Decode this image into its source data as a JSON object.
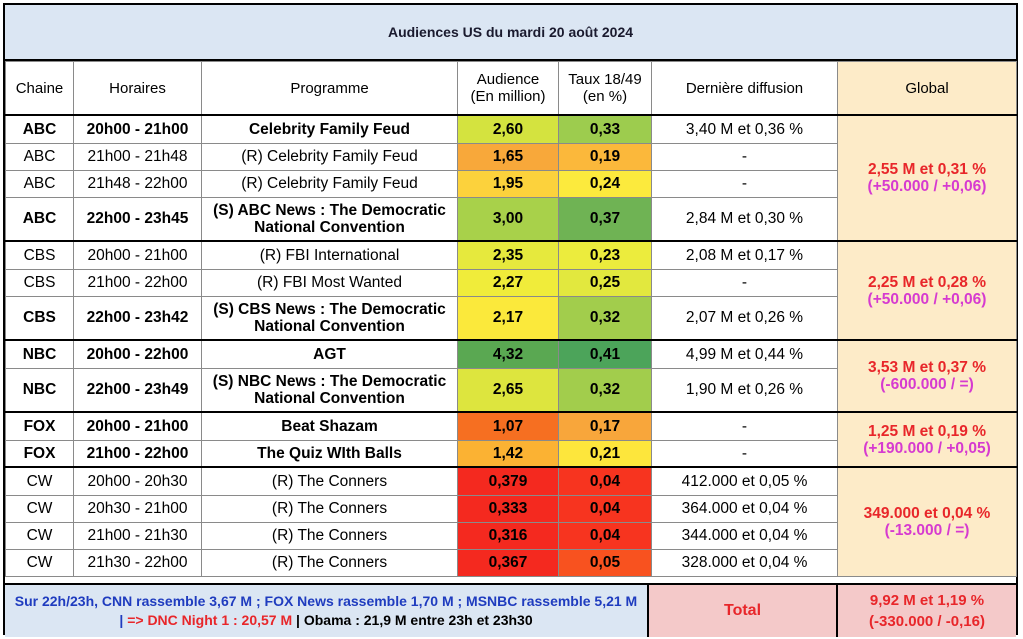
{
  "title": "Audiences US du mardi 20 août 2024",
  "headers": {
    "chaine": "Chaine",
    "horaires": "Horaires",
    "programme": "Programme",
    "audience_l1": "Audience",
    "audience_l2": "(En million)",
    "taux_l1": "Taux 18/49",
    "taux_l2": "(en %)",
    "derniere": "Dernière diffusion",
    "global": "Global"
  },
  "rows": [
    {
      "chaine": "ABC",
      "horaires": "20h00 - 21h00",
      "programme": "Celebrity Family Feud",
      "audience": "2,60",
      "taux": "0,33",
      "derniere": "3,40 M et 0,36 %",
      "bold": true
    },
    {
      "chaine": "ABC",
      "horaires": "21h00 - 21h48",
      "programme": "(R) Celebrity Family Feud",
      "audience": "1,65",
      "taux": "0,19",
      "derniere": "-",
      "bold": false
    },
    {
      "chaine": "ABC",
      "horaires": "21h48 - 22h00",
      "programme": "(R) Celebrity Family Feud",
      "audience": "1,95",
      "taux": "0,24",
      "derniere": "-",
      "bold": false
    },
    {
      "chaine": "ABC",
      "horaires": "22h00 - 23h45",
      "programme_l1": "(S) ABC News : The Democratic",
      "programme_l2": "National Convention",
      "audience": "3,00",
      "taux": "0,37",
      "derniere": "2,84 M et 0,30 %",
      "bold": true
    },
    {
      "chaine": "CBS",
      "horaires": "20h00 - 21h00",
      "programme": "(R) FBI International",
      "audience": "2,35",
      "taux": "0,23",
      "derniere": "2,08 M et 0,17 %",
      "bold": false
    },
    {
      "chaine": "CBS",
      "horaires": "21h00 - 22h00",
      "programme": "(R) FBI Most Wanted",
      "audience": "2,27",
      "taux": "0,25",
      "derniere": "-",
      "bold": false
    },
    {
      "chaine": "CBS",
      "horaires": "22h00 - 23h42",
      "programme_l1": "(S) CBS News : The Democratic",
      "programme_l2": "National Convention",
      "audience": "2,17",
      "taux": "0,32",
      "derniere": "2,07 M et 0,26 %",
      "bold": true
    },
    {
      "chaine": "NBC",
      "horaires": "20h00 - 22h00",
      "programme": "AGT",
      "audience": "4,32",
      "taux": "0,41",
      "derniere": "4,99 M et 0,44 %",
      "bold": true
    },
    {
      "chaine": "NBC",
      "horaires": "22h00 - 23h49",
      "programme_l1": "(S) NBC News : The Democratic",
      "programme_l2": "National Convention",
      "audience": "2,65",
      "taux": "0,32",
      "derniere": "1,90 M et 0,26 %",
      "bold": true
    },
    {
      "chaine": "FOX",
      "horaires": "20h00 - 21h00",
      "programme": "Beat Shazam",
      "audience": "1,07",
      "taux": "0,17",
      "derniere": "-",
      "bold": true
    },
    {
      "chaine": "FOX",
      "horaires": "21h00 - 22h00",
      "programme": "The Quiz WIth Balls",
      "audience": "1,42",
      "taux": "0,21",
      "derniere": "-",
      "bold": true
    },
    {
      "chaine": "CW",
      "horaires": "20h00 - 20h30",
      "programme": "(R) The Conners",
      "audience": "0,379",
      "taux": "0,04",
      "derniere": "412.000 et 0,05 %",
      "bold": false
    },
    {
      "chaine": "CW",
      "horaires": "20h30 - 21h00",
      "programme": "(R) The Conners",
      "audience": "0,333",
      "taux": "0,04",
      "derniere": "364.000 et 0,04 %",
      "bold": false
    },
    {
      "chaine": "CW",
      "horaires": "21h00 - 21h30",
      "programme": "(R) The Conners",
      "audience": "0,316",
      "taux": "0,04",
      "derniere": "344.000 et 0,04 %",
      "bold": false
    },
    {
      "chaine": "CW",
      "horaires": "21h30 - 22h00",
      "programme": "(R) The Conners",
      "audience": "0,367",
      "taux": "0,05",
      "derniere": "328.000 et 0,04 %",
      "bold": false
    }
  ],
  "globals": {
    "abc": {
      "line1": "2,55 M et 0,31 %",
      "line2": "(+50.000 / +0,06)"
    },
    "cbs": {
      "line1": "2,25 M et 0,28 %",
      "line2": "(+50.000 / +0,06)"
    },
    "nbc": {
      "line1": "3,53 M et 0,37 %",
      "line2": "(-600.000 / =)"
    },
    "fox": {
      "line1": "1,25 M et 0,19 %",
      "line2": "(+190.000 / +0,05)"
    },
    "cw": {
      "line1": "349.000 et 0,04 %",
      "line2": "(-13.000 / =)"
    }
  },
  "footer": {
    "note_blue": "Sur 22h/23h, CNN rassemble 3,67 M ; FOX News rassemble 1,70 M ; MSNBC rassemble 5,21 M |",
    "note_red": " => DNC Night 1 : 20,57 M ",
    "note_black": "| Obama : 21,9 M entre 23h et 23h30",
    "total_label": "Total",
    "total_line1": "9,92 M et 1,19 %",
    "total_line2": "(-330.000 / -0,16)"
  },
  "colors": {
    "title_bg": "#dbe6f3",
    "global_bg": "#fdebc8",
    "total_bg": "#f4c9c9",
    "global_red": "#e8262a",
    "global_magenta": "#d63ad0",
    "footer_blue": "#1f3cbf",
    "audience_cells": [
      "#d4e33f",
      "#f8a83a",
      "#fcd23c",
      "#a8d14a",
      "#e6e93d",
      "#f0ec3a",
      "#fbe93b",
      "#5aa852",
      "#dde53e",
      "#f66f21",
      "#fbb233",
      "#f4291f",
      "#f4291f",
      "#f4291f",
      "#f4291f"
    ],
    "taux_cells": [
      "#9dcc4e",
      "#fbb83b",
      "#fcea3d",
      "#6fb354",
      "#ecec3d",
      "#e2e83e",
      "#a2cd4c",
      "#4ca45a",
      "#a2cd4c",
      "#f8a63b",
      "#fde63c",
      "#f7341f",
      "#f7341f",
      "#f7341f",
      "#f8521f"
    ]
  }
}
